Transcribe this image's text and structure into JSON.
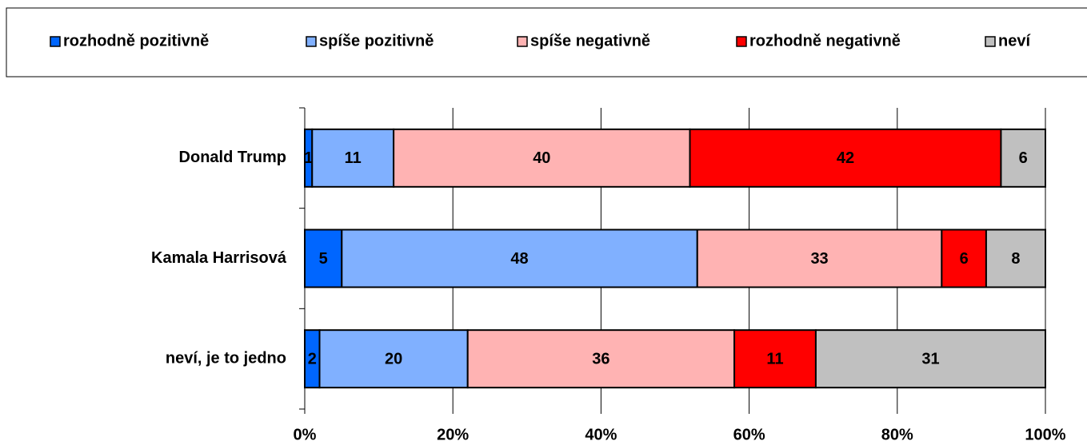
{
  "chart_data": {
    "type": "stacked-barh",
    "categories": [
      "Donald Trump",
      "Kamala Harrisová",
      "neví, je to jedno"
    ],
    "series": [
      {
        "name": "rozhodně pozitivně",
        "color": "#0066ff",
        "values": [
          1,
          5,
          2
        ]
      },
      {
        "name": "spíše pozitivně",
        "color": "#80b0ff",
        "values": [
          11,
          48,
          20
        ]
      },
      {
        "name": "spíše negativně",
        "color": "#ffb3b3",
        "values": [
          40,
          33,
          36
        ]
      },
      {
        "name": "rozhodně negativně",
        "color": "#ff0000",
        "values": [
          42,
          6,
          11
        ]
      },
      {
        "name": "neví",
        "color": "#c0c0c0",
        "values": [
          6,
          8,
          31
        ]
      }
    ],
    "xlim": [
      0,
      100
    ],
    "xticks": [
      {
        "value": 0,
        "label": "0%"
      },
      {
        "value": 20,
        "label": "20%"
      },
      {
        "value": 40,
        "label": "40%"
      },
      {
        "value": 60,
        "label": "60%"
      },
      {
        "value": 80,
        "label": "80%"
      },
      {
        "value": 100,
        "label": "100%"
      }
    ],
    "grid": true,
    "legend": "top"
  }
}
